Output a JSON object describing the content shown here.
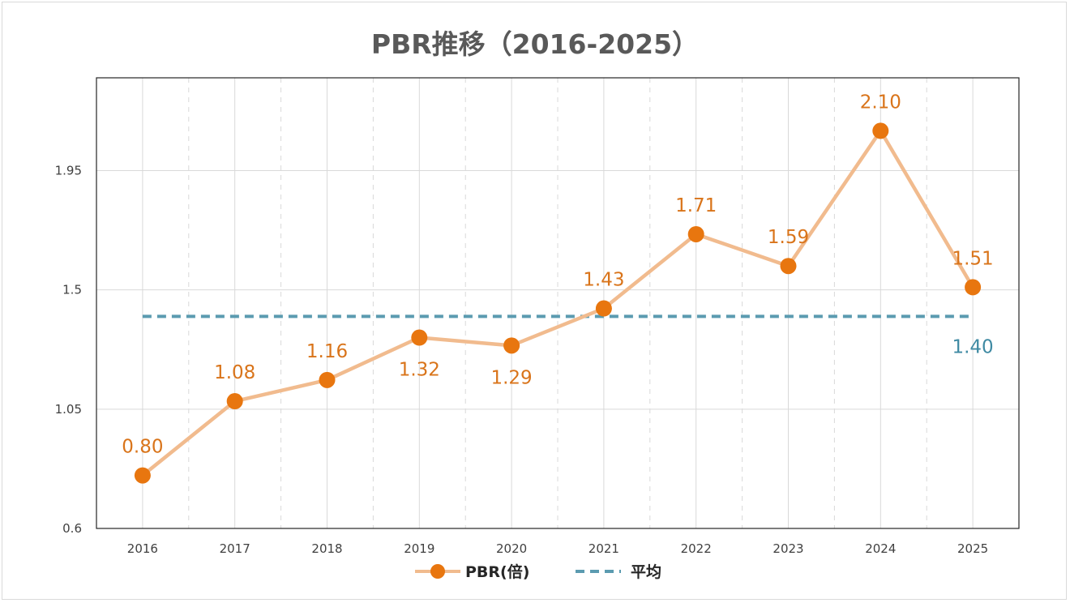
{
  "chart_data": {
    "type": "line",
    "title": "PBR推移（2016-2025）",
    "xlabel": "",
    "ylabel": "",
    "categories": [
      "2016",
      "2017",
      "2018",
      "2019",
      "2020",
      "2021",
      "2022",
      "2023",
      "2024",
      "2025"
    ],
    "ylim": [
      0.6,
      2.3
    ],
    "yticks": [
      0.6,
      1.05,
      1.5,
      1.95
    ],
    "ytick_labels": [
      "0.6",
      "1.05",
      "1.5",
      "1.95"
    ],
    "series": [
      {
        "name": "PBR(倍)",
        "values": [
          0.8,
          1.08,
          1.16,
          1.32,
          1.29,
          1.43,
          1.71,
          1.59,
          2.1,
          1.51
        ],
        "labels": [
          "0.80",
          "1.08",
          "1.16",
          "1.32",
          "1.29",
          "1.43",
          "1.71",
          "1.59",
          "2.10",
          "1.51"
        ],
        "label_pos": [
          "above",
          "above",
          "above",
          "below",
          "below",
          "above",
          "above",
          "above",
          "above",
          "above"
        ],
        "marker_color": "#E8760F",
        "line_color": "#F1BB8E",
        "label_color": "#D9741A"
      },
      {
        "name": "平均",
        "values": [
          1.4,
          1.4,
          1.4,
          1.4,
          1.4,
          1.4,
          1.4,
          1.4,
          1.4,
          1.4
        ],
        "end_label": "1.40",
        "line_color": "#5B9BB0",
        "label_color": "#3F8AA3",
        "style": "dashed"
      }
    ],
    "grid": true,
    "legend": "bottom"
  }
}
